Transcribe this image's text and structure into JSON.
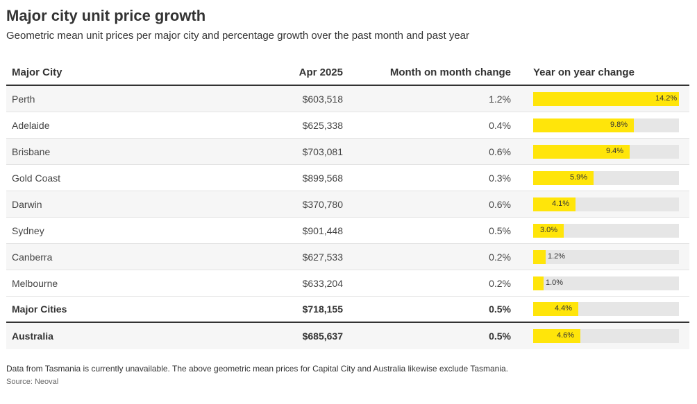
{
  "title": "Major city unit price growth",
  "subtitle": "Geometric mean unit prices per major city and percentage growth over the past month and past year",
  "columns": [
    "Major City",
    "Apr 2025",
    "Month on month change",
    "Year on year change"
  ],
  "notes": "Data from Tasmania is currently unavailable. The above geometric mean prices for Capital City and Australia likewise exclude Tasmania.",
  "source": "Source: Neoval",
  "colors": {
    "bar": "#ffe50a",
    "track": "#e6e6e6"
  },
  "chart_data": {
    "type": "table",
    "bar_max": 14.2,
    "rows": [
      {
        "city": "Perth",
        "price": "$603,518",
        "mom": "1.2%",
        "yoy": 14.2,
        "yoy_label": "14.2%"
      },
      {
        "city": "Adelaide",
        "price": "$625,338",
        "mom": "0.4%",
        "yoy": 9.8,
        "yoy_label": "9.8%"
      },
      {
        "city": "Brisbane",
        "price": "$703,081",
        "mom": "0.6%",
        "yoy": 9.4,
        "yoy_label": "9.4%"
      },
      {
        "city": "Gold Coast",
        "price": "$899,568",
        "mom": "0.3%",
        "yoy": 5.9,
        "yoy_label": "5.9%"
      },
      {
        "city": "Darwin",
        "price": "$370,780",
        "mom": "0.6%",
        "yoy": 4.1,
        "yoy_label": "4.1%"
      },
      {
        "city": "Sydney",
        "price": "$901,448",
        "mom": "0.5%",
        "yoy": 3.0,
        "yoy_label": "3.0%"
      },
      {
        "city": "Canberra",
        "price": "$627,533",
        "mom": "0.2%",
        "yoy": 1.2,
        "yoy_label": "1.2%"
      },
      {
        "city": "Melbourne",
        "price": "$633,204",
        "mom": "0.2%",
        "yoy": 1.0,
        "yoy_label": "1.0%"
      }
    ],
    "summary": [
      {
        "city": "Major Cities",
        "price": "$718,155",
        "mom": "0.5%",
        "yoy": 4.4,
        "yoy_label": "4.4%"
      },
      {
        "city": "Australia",
        "price": "$685,637",
        "mom": "0.5%",
        "yoy": 4.6,
        "yoy_label": "4.6%"
      }
    ]
  }
}
